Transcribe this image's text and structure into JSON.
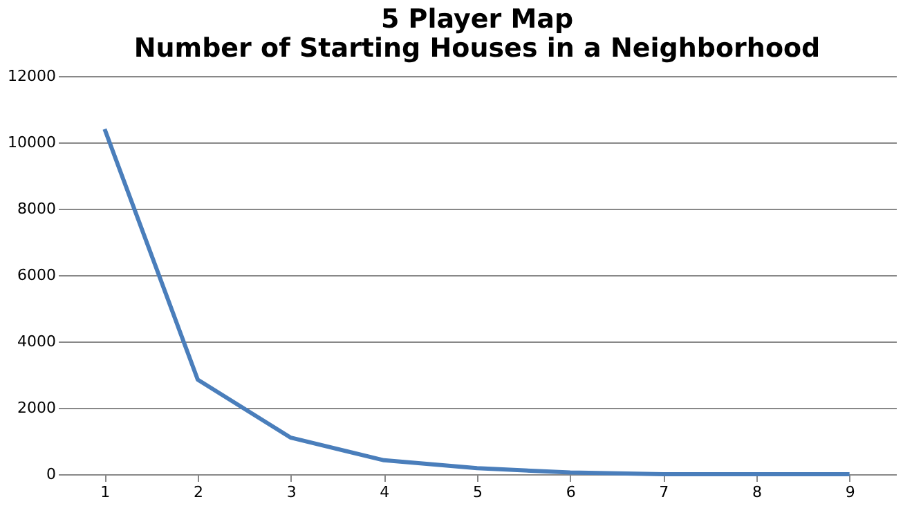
{
  "chart_data": {
    "type": "line",
    "title": [
      "5 Player Map",
      "Number of Starting Houses in a Neighborhood"
    ],
    "categories": [
      "1",
      "2",
      "3",
      "4",
      "5",
      "6",
      "7",
      "8",
      "9"
    ],
    "series": [
      {
        "color": "#4a7ebb",
        "values": [
          10400,
          2850,
          1100,
          420,
          180,
          50,
          0,
          0,
          0
        ]
      }
    ],
    "ylim": [
      0,
      12000
    ],
    "yticks": [
      0,
      2000,
      4000,
      6000,
      8000,
      10000,
      12000
    ],
    "grid": "y",
    "legend": false,
    "marker": "none",
    "line_style": "solid"
  }
}
